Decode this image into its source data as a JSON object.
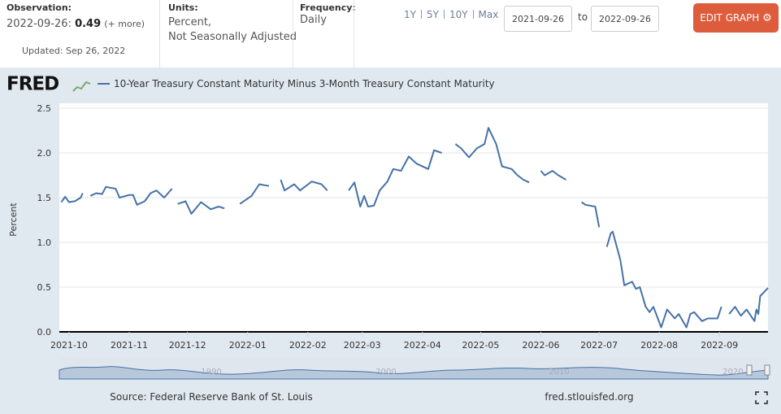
{
  "header": {
    "observation_label": "Observation:",
    "observation_date": "2022-09-26:",
    "observation_value": 0.49,
    "more": "(+ more)",
    "updated": "Updated: Sep 26, 2022",
    "units_label": "Units:",
    "units": [
      "Percent,",
      "Not Seasonally Adjusted"
    ],
    "frequency_label": "Frequency:",
    "frequency": "Daily",
    "ranges": [
      "1Y",
      "5Y",
      "10Y",
      "Max"
    ],
    "start_date": "2021-09-26",
    "to": "to",
    "end_date": "2022-09-26",
    "edit_button": "EDIT GRAPH"
  },
  "logo": "FRED",
  "chart_data": {
    "type": "line",
    "y_label": "Percent",
    "x": [
      "2021-09-27",
      "2021-09-29",
      "2021-10-01",
      "2021-10-04",
      "2021-10-07",
      "2021-10-08",
      "2021-10-11",
      "2021-10-12",
      "2021-10-15",
      "2021-10-18",
      "2021-10-20",
      "2021-10-25",
      "2021-10-27",
      "2021-11-01",
      "2021-11-03",
      "2021-11-05",
      "2021-11-09",
      "2021-11-12",
      "2021-11-15",
      "2021-11-19",
      "2021-11-23",
      "2021-11-25",
      "2021-11-26",
      "2021-11-30",
      "2021-12-03",
      "2021-12-08",
      "2021-12-13",
      "2021-12-17",
      "2021-12-20",
      "2021-12-24",
      "2021-12-28",
      "2022-01-03",
      "2022-01-07",
      "2022-01-12",
      "2022-01-17",
      "2022-01-18",
      "2022-01-20",
      "2022-01-25",
      "2022-01-28",
      "2022-02-03",
      "2022-02-08",
      "2022-02-11",
      "2022-02-21",
      "2022-02-22",
      "2022-02-25",
      "2022-02-28",
      "2022-03-02",
      "2022-03-04",
      "2022-03-07",
      "2022-03-10",
      "2022-03-14",
      "2022-03-17",
      "2022-03-21",
      "2022-03-25",
      "2022-03-29",
      "2022-04-04",
      "2022-04-07",
      "2022-04-11",
      "2022-04-15",
      "2022-04-18",
      "2022-04-21",
      "2022-04-25",
      "2022-04-29",
      "2022-05-03",
      "2022-05-05",
      "2022-05-09",
      "2022-05-12",
      "2022-05-17",
      "2022-05-20",
      "2022-05-23",
      "2022-05-26",
      "2022-05-30",
      "2022-06-01",
      "2022-06-03",
      "2022-06-07",
      "2022-06-10",
      "2022-06-14",
      "2022-06-20",
      "2022-06-22",
      "2022-06-24",
      "2022-06-29",
      "2022-07-01",
      "2022-07-04",
      "2022-07-05",
      "2022-07-07",
      "2022-07-08",
      "2022-07-12",
      "2022-07-14",
      "2022-07-18",
      "2022-07-20",
      "2022-07-22",
      "2022-07-25",
      "2022-07-27",
      "2022-07-29",
      "2022-08-02",
      "2022-08-05",
      "2022-08-09",
      "2022-08-11",
      "2022-08-15",
      "2022-08-17",
      "2022-08-19",
      "2022-08-23",
      "2022-08-26",
      "2022-08-31",
      "2022-09-02",
      "2022-09-05",
      "2022-09-06",
      "2022-09-09",
      "2022-09-12",
      "2022-09-15",
      "2022-09-19",
      "2022-09-20",
      "2022-09-21",
      "2022-09-22",
      "2022-09-26"
    ],
    "series": [
      {
        "name": "10-Year Treasury Constant Maturity Minus 3-Month Treasury Constant Maturity",
        "color": "#4572a7",
        "values": [
          1.45,
          1.51,
          1.45,
          1.46,
          1.5,
          1.55,
          null,
          1.52,
          1.55,
          1.54,
          1.62,
          1.6,
          1.5,
          1.53,
          1.53,
          1.42,
          1.46,
          1.55,
          1.58,
          1.5,
          1.6,
          null,
          1.43,
          1.46,
          1.32,
          1.45,
          1.37,
          1.4,
          1.38,
          null,
          1.43,
          1.52,
          1.65,
          1.63,
          null,
          1.7,
          1.58,
          1.65,
          1.58,
          1.68,
          1.65,
          1.58,
          null,
          1.58,
          1.67,
          1.4,
          1.52,
          1.4,
          1.41,
          1.58,
          1.68,
          1.82,
          1.8,
          1.96,
          1.88,
          1.82,
          2.03,
          2.0,
          null,
          2.1,
          2.05,
          1.95,
          2.05,
          2.1,
          2.28,
          2.1,
          1.85,
          1.82,
          1.75,
          1.7,
          1.67,
          null,
          1.8,
          1.75,
          1.8,
          1.75,
          1.7,
          null,
          1.45,
          1.42,
          1.4,
          1.17,
          null,
          0.95,
          1.1,
          1.12,
          0.8,
          0.52,
          0.56,
          0.48,
          0.5,
          0.28,
          0.22,
          0.28,
          0.05,
          0.25,
          0.15,
          0.2,
          0.05,
          0.2,
          0.22,
          0.12,
          0.15,
          0.15,
          0.28,
          null,
          0.2,
          0.28,
          0.18,
          0.25,
          0.12,
          0.25,
          0.2,
          0.4,
          0.49
        ]
      }
    ],
    "xlim": [
      "2021-09-26",
      "2022-09-26"
    ],
    "xticks": [
      "2021-10",
      "2021-11",
      "2021-12",
      "2022-01",
      "2022-02",
      "2022-03",
      "2022-04",
      "2022-05",
      "2022-06",
      "2022-07",
      "2022-08",
      "2022-09"
    ],
    "ylim": [
      0,
      2.5
    ],
    "yticks": [
      {
        "value": 0,
        "label": "0.0"
      },
      0.5,
      {
        "value": 1,
        "label": "1.0"
      },
      1.5,
      {
        "value": 2,
        "label": "2.0"
      },
      2.5
    ],
    "grid": true
  },
  "navigator_labels": [
    "1990",
    "2000",
    "2010",
    "2020"
  ],
  "footer": {
    "source": "Source: Federal Reserve Bank of St. Louis",
    "site": "fred.stlouisfed.org"
  }
}
